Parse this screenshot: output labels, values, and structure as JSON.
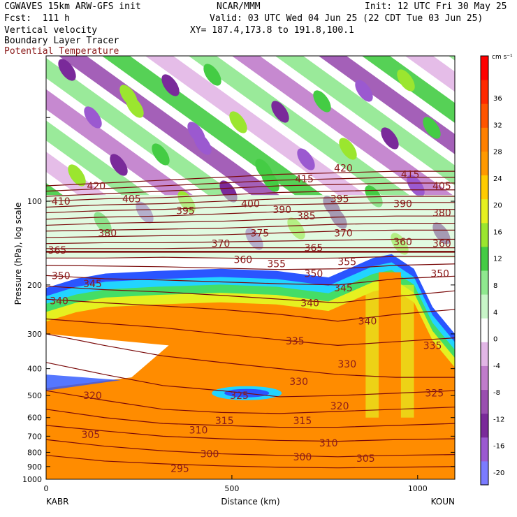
{
  "header": {
    "model": "CGWAVES 15km ARW-GFS init",
    "org": "NCAR/MMM",
    "init": "Init: 12 UTC Fri 30 May 25",
    "fcst": "Fcst:  111 h",
    "valid": "Valid: 03 UTC Wed 04 Jun 25 (22 CDT Tue 03 Jun 25)",
    "field1": "Vertical velocity",
    "xy": "XY= 187.4,173.8 to 191.8,100.1",
    "field2": "Boundary Layer Tracer",
    "field3": "Potential Temperature"
  },
  "colors": {
    "theta_line": "#7a0a0a",
    "theta_text": "#8b1a1a",
    "scale": [
      "#7b7bff",
      "#9b59d0",
      "#7a2a9a",
      "#9a4fb0",
      "#c07ccb",
      "#e2b6e6",
      "#ffffff",
      "#c8f5c8",
      "#8fe88f",
      "#44cc44",
      "#9be62f",
      "#e6f020",
      "#ffcc00",
      "#ff9900",
      "#ff8000",
      "#ff5500",
      "#ff2a00",
      "#ff0000"
    ]
  },
  "chart_data": {
    "type": "heatmap",
    "title": "Vertical velocity / Boundary Layer Tracer / Potential Temperature",
    "xlabel": "Distance (km)",
    "ylabel": "Pressure (hPa), log scale",
    "x_ticks": [
      0,
      500,
      1000
    ],
    "y_ticks": [
      100,
      200,
      300,
      400,
      500,
      600,
      700,
      800,
      900,
      1000
    ],
    "x_endpoint_labels": [
      "KABR",
      "KOUN"
    ],
    "xlim": [
      0,
      1100
    ],
    "ylim_hpa": [
      1000,
      30
    ],
    "y_scale": "log",
    "colorbar": {
      "unit": "cm s⁻¹",
      "ticks": [
        36,
        32,
        28,
        24,
        20,
        16,
        12,
        8,
        4,
        0,
        -4,
        -8,
        -12,
        -16,
        -20
      ]
    },
    "theta_contour_labels": [
      {
        "value": "420",
        "x_km": 135,
        "p_hpa": 88
      },
      {
        "value": "405",
        "x_km": 230,
        "p_hpa": 98
      },
      {
        "value": "410",
        "x_km": 40,
        "p_hpa": 100
      },
      {
        "value": "395",
        "x_km": 375,
        "p_hpa": 108
      },
      {
        "value": "400",
        "x_km": 550,
        "p_hpa": 102
      },
      {
        "value": "390",
        "x_km": 635,
        "p_hpa": 107
      },
      {
        "value": "385",
        "x_km": 700,
        "p_hpa": 113
      },
      {
        "value": "420",
        "x_km": 800,
        "p_hpa": 76
      },
      {
        "value": "415",
        "x_km": 695,
        "p_hpa": 83
      },
      {
        "value": "395",
        "x_km": 790,
        "p_hpa": 98
      },
      {
        "value": "415",
        "x_km": 980,
        "p_hpa": 80
      },
      {
        "value": "405",
        "x_km": 1065,
        "p_hpa": 88
      },
      {
        "value": "390",
        "x_km": 960,
        "p_hpa": 102
      },
      {
        "value": "380",
        "x_km": 1065,
        "p_hpa": 110
      },
      {
        "value": "380",
        "x_km": 165,
        "p_hpa": 130
      },
      {
        "value": "375",
        "x_km": 575,
        "p_hpa": 130
      },
      {
        "value": "370",
        "x_km": 470,
        "p_hpa": 142
      },
      {
        "value": "370",
        "x_km": 800,
        "p_hpa": 130
      },
      {
        "value": "365",
        "x_km": 30,
        "p_hpa": 150
      },
      {
        "value": "365",
        "x_km": 720,
        "p_hpa": 147
      },
      {
        "value": "360",
        "x_km": 960,
        "p_hpa": 140
      },
      {
        "value": "360",
        "x_km": 1065,
        "p_hpa": 142
      },
      {
        "value": "360",
        "x_km": 530,
        "p_hpa": 162
      },
      {
        "value": "355",
        "x_km": 620,
        "p_hpa": 168
      },
      {
        "value": "355",
        "x_km": 810,
        "p_hpa": 165
      },
      {
        "value": "350",
        "x_km": 40,
        "p_hpa": 185
      },
      {
        "value": "350",
        "x_km": 720,
        "p_hpa": 182
      },
      {
        "value": "350",
        "x_km": 1060,
        "p_hpa": 182
      },
      {
        "value": "345",
        "x_km": 125,
        "p_hpa": 198
      },
      {
        "value": "345",
        "x_km": 800,
        "p_hpa": 205
      },
      {
        "value": "340",
        "x_km": 35,
        "p_hpa": 228
      },
      {
        "value": "340",
        "x_km": 710,
        "p_hpa": 232
      },
      {
        "value": "340",
        "x_km": 865,
        "p_hpa": 270
      },
      {
        "value": "335",
        "x_km": 670,
        "p_hpa": 318
      },
      {
        "value": "335",
        "x_km": 1040,
        "p_hpa": 330
      },
      {
        "value": "330",
        "x_km": 810,
        "p_hpa": 385
      },
      {
        "value": "330",
        "x_km": 680,
        "p_hpa": 445
      },
      {
        "value": "325",
        "x_km": 520,
        "p_hpa": 500
      },
      {
        "value": "325",
        "x_km": 1045,
        "p_hpa": 490
      },
      {
        "value": "320",
        "x_km": 125,
        "p_hpa": 500
      },
      {
        "value": "320",
        "x_km": 790,
        "p_hpa": 545
      },
      {
        "value": "315",
        "x_km": 480,
        "p_hpa": 615
      },
      {
        "value": "315",
        "x_km": 690,
        "p_hpa": 615
      },
      {
        "value": "310",
        "x_km": 410,
        "p_hpa": 665
      },
      {
        "value": "310",
        "x_km": 760,
        "p_hpa": 740
      },
      {
        "value": "305",
        "x_km": 120,
        "p_hpa": 690
      },
      {
        "value": "305",
        "x_km": 860,
        "p_hpa": 840
      },
      {
        "value": "300",
        "x_km": 440,
        "p_hpa": 810
      },
      {
        "value": "300",
        "x_km": 690,
        "p_hpa": 830
      },
      {
        "value": "295",
        "x_km": 360,
        "p_hpa": 915
      }
    ],
    "theta_lines": [
      {
        "p": [
          88,
          86,
          84,
          82,
          80,
          79,
          78,
          78
        ]
      },
      {
        "p": [
          92,
          90,
          88,
          86,
          84,
          83,
          82,
          82
        ]
      },
      {
        "p": [
          96,
          94,
          92,
          90,
          88,
          87,
          86,
          86
        ]
      },
      {
        "p": [
          100,
          98,
          97,
          95,
          93,
          92,
          91,
          91
        ]
      },
      {
        "p": [
          105,
          103,
          102,
          100,
          98,
          97,
          96,
          96
        ]
      },
      {
        "p": [
          110,
          108,
          107,
          105,
          103,
          102,
          101,
          101
        ]
      },
      {
        "p": [
          116,
          114,
          113,
          111,
          109,
          108,
          107,
          107
        ]
      },
      {
        "p": [
          122,
          120,
          119,
          118,
          116,
          114,
          113,
          113
        ]
      },
      {
        "p": [
          128,
          127,
          126,
          125,
          123,
          121,
          120,
          120
        ]
      },
      {
        "p": [
          135,
          134,
          133,
          132,
          130,
          128,
          127,
          127
        ]
      },
      {
        "p": [
          142,
          141,
          141,
          140,
          139,
          138,
          137,
          137
        ]
      },
      {
        "p": [
          148,
          148,
          148,
          147,
          147,
          147,
          147,
          147
        ]
      },
      {
        "p": [
          152,
          152,
          152,
          152,
          152,
          152,
          152,
          152
        ]
      },
      {
        "p": [
          160,
          160,
          159,
          160,
          161,
          160,
          158,
          158
        ]
      },
      {
        "p": [
          170,
          171,
          172,
          174,
          176,
          175,
          170,
          168
        ]
      },
      {
        "p": [
          185,
          190,
          192,
          195,
          198,
          200,
          190,
          186
        ]
      },
      {
        "p": [
          202,
          208,
          212,
          218,
          225,
          232,
          220,
          210
        ]
      },
      {
        "p": [
          225,
          232,
          238,
          245,
          255,
          270,
          255,
          245
        ]
      },
      {
        "p": [
          265,
          275,
          285,
          300,
          315,
          330,
          320,
          310
        ]
      },
      {
        "p": [
          300,
          330,
          360,
          380,
          400,
          420,
          430,
          430
        ]
      },
      {
        "p": [
          380,
          420,
          460,
          480,
          505,
          500,
          490,
          480
        ]
      },
      {
        "p": [
          480,
          520,
          560,
          575,
          580,
          570,
          560,
          550
        ]
      },
      {
        "p": [
          560,
          600,
          630,
          640,
          650,
          650,
          640,
          630
        ]
      },
      {
        "p": [
          640,
          670,
          700,
          715,
          725,
          730,
          720,
          715
        ]
      },
      {
        "p": [
          720,
          760,
          790,
          810,
          820,
          830,
          820,
          815
        ]
      },
      {
        "p": [
          820,
          860,
          880,
          895,
          905,
          910,
          905,
          900
        ]
      }
    ],
    "x_nodes_km": [
      0,
      157,
      314,
      471,
      628,
      785,
      942,
      1100
    ],
    "regions": [
      {
        "kind": "tracer_orange",
        "desc": "boundary-layer tracer max, 200-1000 hPa"
      },
      {
        "kind": "vv_green_purple_bands",
        "desc": "gravity-wave vertical-velocity bands above 100 hPa"
      }
    ]
  }
}
